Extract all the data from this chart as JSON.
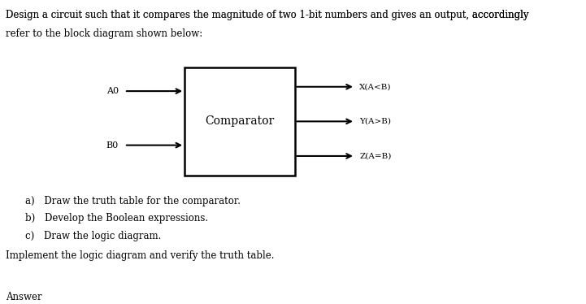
{
  "bg_color": "#ffffff",
  "title_line1": "Design a circuit such that it compares the magnitude of two 1-bit numbers and gives an output, ",
  "title_underline": "accordingly",
  "title_line2": "refer to the block diagram shown below:",
  "box_label": "Comparator",
  "input_A": "A0",
  "input_B": "B0",
  "output_X": "X(A<B)",
  "output_Y": "Y(A>B)",
  "output_Z": "Z(A=B)",
  "items": [
    "a) Draw the truth table for the comparator.",
    "b) Develop the Boolean expressions.",
    "c) Draw the logic diagram."
  ],
  "footer": "Implement the logic diagram and verify the truth table.",
  "footer2": "Answer"
}
